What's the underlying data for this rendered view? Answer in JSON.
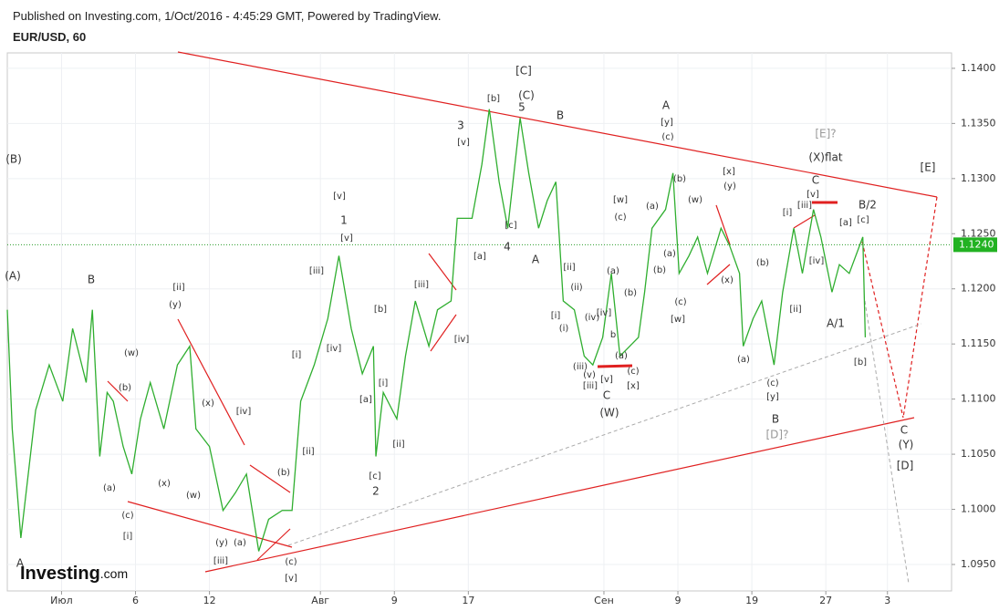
{
  "header": {
    "published": "Published on Investing.com, 1/Oct/2016 - 4:45:29 GMT, Powered by TradingView.",
    "symbol": "EUR/USD, 60",
    "logo": "Investing",
    "logo_suffix": ".com"
  },
  "chart_data": {
    "type": "line",
    "color": "#2fae2f",
    "x": [
      -4.4,
      -4.0,
      -3.3,
      -2.1,
      -1.0,
      0.1,
      0.9,
      2.0,
      2.5,
      3.1,
      3.7,
      4.2,
      5.0,
      5.7,
      6.4,
      7.2,
      8.3,
      9.4,
      10.4,
      10.9,
      12.0,
      13.1,
      14.1,
      15.0,
      16.0,
      16.8,
      17.9,
      18.7,
      19.4,
      20.5,
      21.6,
      22.5,
      23.5,
      24.4,
      25.3,
      25.5,
      26.1,
      27.2,
      27.9,
      28.7,
      29.8,
      30.5,
      31.6,
      32.1,
      33.3,
      34.1,
      34.7,
      35.5,
      36.2,
      37.2,
      37.9,
      38.7,
      39.4,
      40.1,
      40.7,
      41.6,
      42.4,
      43.1,
      43.9,
      44.6,
      45.3,
      46.1,
      46.8,
      47.3,
      47.9,
      49.0,
      49.6,
      50.1,
      50.9,
      51.6,
      52.4,
      53.5,
      54.2,
      55.0,
      55.3,
      56.1,
      56.8,
      57.8,
      58.5,
      59.4,
      60.1,
      61.0,
      61.6,
      62.5,
      63.1,
      63.9,
      65.0,
      65.2
    ],
    "values": [
      1.1181,
      1.1073,
      1.0974,
      1.109,
      1.1131,
      1.1098,
      1.1164,
      1.1115,
      1.1181,
      1.1048,
      1.1106,
      1.1098,
      1.1057,
      1.1032,
      1.1082,
      1.1115,
      1.1073,
      1.1131,
      1.1148,
      1.1073,
      1.1057,
      1.0999,
      1.1015,
      1.1032,
      1.0962,
      1.0991,
      1.0999,
      1.0999,
      1.1098,
      1.1131,
      1.1173,
      1.123,
      1.1164,
      1.1123,
      1.1148,
      1.1048,
      1.1106,
      1.1082,
      1.1139,
      1.1189,
      1.1148,
      1.1181,
      1.1189,
      1.1264,
      1.1264,
      1.1313,
      1.1363,
      1.1297,
      1.1255,
      1.1355,
      1.1305,
      1.1255,
      1.128,
      1.1297,
      1.1189,
      1.1181,
      1.1139,
      1.1131,
      1.1156,
      1.1214,
      1.1139,
      1.1148,
      1.1156,
      1.1197,
      1.1255,
      1.1272,
      1.1305,
      1.1214,
      1.123,
      1.1247,
      1.1214,
      1.1255,
      1.1239,
      1.1214,
      1.1148,
      1.1173,
      1.1189,
      1.1131,
      1.1197,
      1.1255,
      1.1214,
      1.1272,
      1.1247,
      1.1197,
      1.1222,
      1.1214,
      1.1247,
      1.1156
    ],
    "xlim": [
      -4.4,
      72.2
    ],
    "ylim": [
      1.0926,
      1.1414
    ],
    "xticks": [
      {
        "value": 0,
        "label": "Июл"
      },
      6,
      12,
      {
        "value": 21,
        "label": "Авг"
      },
      {
        "value": 27,
        "label": "9"
      },
      {
        "value": 33,
        "label": "17"
      },
      {
        "value": 44,
        "label": "Сен"
      },
      {
        "value": 50,
        "label": "9"
      },
      {
        "value": 56,
        "label": "19"
      },
      {
        "value": 62,
        "label": "27"
      },
      {
        "value": 67,
        "label": "3"
      }
    ],
    "yticks": [
      {
        "value": 1.095,
        "label": "1.0950"
      },
      {
        "value": 1.1,
        "label": "1.1000"
      },
      {
        "value": 1.105,
        "label": "1.1050"
      },
      {
        "value": 1.11,
        "label": "1.1100"
      },
      {
        "value": 1.115,
        "label": "1.1150"
      },
      {
        "value": 1.12,
        "label": "1.1200"
      },
      {
        "value": 1.125,
        "label": "1.1250"
      },
      {
        "value": 1.13,
        "label": "1.1300"
      },
      {
        "value": 1.135,
        "label": "1.1350"
      },
      {
        "value": 1.14,
        "label": "1.1400"
      }
    ],
    "grid": true,
    "last_price": {
      "value": 1.124,
      "label": "1.1240"
    },
    "annotations": [
      "(B)",
      "(A)",
      "B",
      "A",
      "[ii]",
      "(y)",
      "(w)",
      "(b)",
      "(x)",
      "[iv]",
      "(a)",
      "(c)",
      "[i]",
      "(x)",
      "(w)",
      "(y)",
      "(a)",
      "[iii]",
      "(b)",
      "(c)",
      "[v]",
      "[ii]",
      "[i]",
      "[iv]",
      "[iii]",
      "[v]",
      "1",
      "[v]",
      "[b]",
      "[i]",
      "[a]",
      "[ii]",
      "[c]",
      "2",
      "[iii]",
      "[iv]",
      "3",
      "[v]",
      "[b]",
      "[C]",
      "(C)",
      "5",
      "B",
      "[c]",
      "4",
      "[a]",
      "A",
      "[ii]",
      "(ii)",
      "[i]",
      "(i)",
      "(iv)",
      "[iv]",
      "(iii)",
      "(v)",
      "[v]",
      "[iii]",
      "C",
      "(W)",
      "(a)",
      "(b)",
      "b",
      "(a)",
      "(c)",
      "[x]",
      "[w]",
      "(c)",
      "(a)",
      "(b)",
      "(a)",
      "(b)",
      "(w)",
      "(c)",
      "[w]",
      "A",
      "[y]",
      "(c)",
      "[x]",
      "(y)",
      "(x)",
      "(b)",
      "(a)",
      "(c)",
      "[y]",
      "B",
      "[D]?",
      "[ii]",
      "[i]",
      "[iii]",
      "[iv]",
      "[v]",
      "C",
      "(X)flat",
      "[E]?",
      "[a]",
      "B/2",
      "[c]",
      "A/1",
      "[b]",
      "[E]",
      "C",
      "(Y)",
      "[D]"
    ]
  }
}
